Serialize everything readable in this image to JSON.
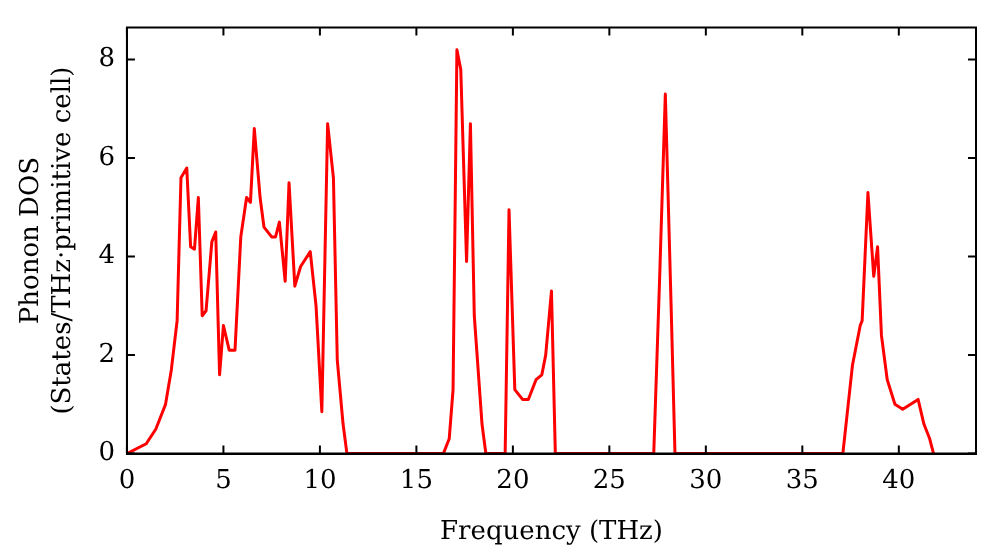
{
  "chart_data": {
    "type": "line",
    "xlabel": "Frequency (THz)",
    "ylabel": "Phonon DOS\n(States/THz·primitive cell)",
    "xlim": [
      0,
      44
    ],
    "xticks": [
      0,
      5,
      10,
      15,
      20,
      25,
      30,
      35,
      40
    ],
    "ylim": [
      0,
      8.65
    ],
    "yticks": [
      0,
      2,
      4,
      6,
      8
    ],
    "grid": false,
    "legend": false,
    "marker": "none",
    "line_style": "solid",
    "series": [
      {
        "color": "#ff0000",
        "x": [
          0,
          1,
          1.5,
          2,
          2.3,
          2.6,
          2.8,
          3.1,
          3.3,
          3.5,
          3.7,
          3.9,
          4.1,
          4.4,
          4.6,
          4.8,
          5.0,
          5.3,
          5.6,
          5.9,
          6.2,
          6.4,
          6.6,
          6.9,
          7.1,
          7.5,
          7.7,
          7.9,
          8.2,
          8.4,
          8.7,
          9.0,
          9.5,
          9.8,
          10.1,
          10.4,
          10.7,
          10.9,
          11.2,
          11.4,
          16.4,
          16.7,
          16.9,
          17.1,
          17.3,
          17.6,
          17.8,
          18.0,
          18.4,
          18.6,
          19.6,
          19.8,
          20.1,
          20.5,
          20.8,
          21.2,
          21.5,
          21.7,
          22.0,
          22.2,
          27.3,
          27.6,
          27.9,
          28.2,
          28.4,
          37.1,
          37.6,
          38.0,
          38.1,
          38.4,
          38.7,
          38.9,
          39.1,
          39.4,
          39.8,
          40.2,
          41.0,
          41.3,
          41.6,
          41.8
        ],
        "values": [
          0,
          0.2,
          0.5,
          1.0,
          1.7,
          2.7,
          5.6,
          5.8,
          4.2,
          4.15,
          5.2,
          2.8,
          2.9,
          4.3,
          4.5,
          1.6,
          2.6,
          2.1,
          2.1,
          4.4,
          5.2,
          5.1,
          6.6,
          5.2,
          4.6,
          4.4,
          4.4,
          4.7,
          3.5,
          5.5,
          3.4,
          3.8,
          4.1,
          3.0,
          0.85,
          6.7,
          5.6,
          1.9,
          0.6,
          0,
          0,
          0.3,
          1.3,
          8.2,
          7.8,
          3.9,
          6.7,
          2.8,
          0.6,
          0,
          0,
          4.95,
          1.3,
          1.1,
          1.1,
          1.5,
          1.6,
          2.0,
          3.3,
          0,
          0,
          3.5,
          7.3,
          3.0,
          0,
          0,
          1.8,
          2.6,
          2.7,
          5.3,
          3.6,
          4.2,
          2.4,
          1.5,
          1.0,
          0.9,
          1.1,
          0.6,
          0.3,
          0
        ]
      }
    ]
  }
}
